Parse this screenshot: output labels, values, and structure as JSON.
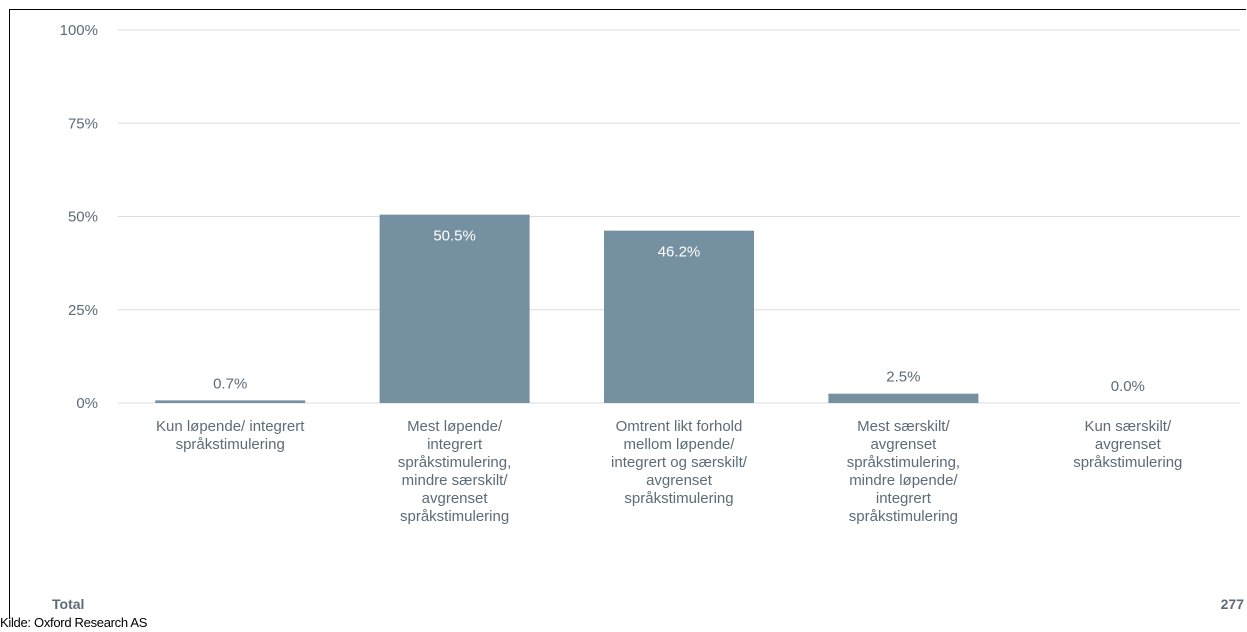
{
  "chart_data": {
    "type": "bar",
    "categories": [
      [
        "Kun løpende/ integrert",
        "språkstimulering"
      ],
      [
        "Mest løpende/",
        "integrert",
        "språkstimulering,",
        "mindre særskilt/",
        "avgrenset",
        "språkstimulering"
      ],
      [
        "Omtrent likt forhold",
        "mellom løpende/",
        "integrert og særskilt/",
        "avgrenset",
        "språkstimulering"
      ],
      [
        "Mest særskilt/",
        "avgrenset",
        "språkstimulering,",
        "mindre løpende/",
        "integrert",
        "språkstimulering"
      ],
      [
        "Kun særskilt/",
        "avgrenset",
        "språkstimulering"
      ]
    ],
    "values": [
      0.7,
      50.5,
      46.2,
      2.5,
      0.0
    ],
    "value_labels": [
      "0.7%",
      "50.5%",
      "46.2%",
      "2.5%",
      "0.0%"
    ],
    "yticks": [
      "0%",
      "25%",
      "50%",
      "75%",
      "100%"
    ],
    "ylim": [
      0,
      100
    ],
    "grid": true,
    "bar_color": "#7590a0",
    "grid_color": "#d9dde0",
    "label_color": "#5d6b78"
  },
  "footer": {
    "total_label": "Total",
    "total_value": "277",
    "source": "Kilde: Oxford Research AS"
  }
}
